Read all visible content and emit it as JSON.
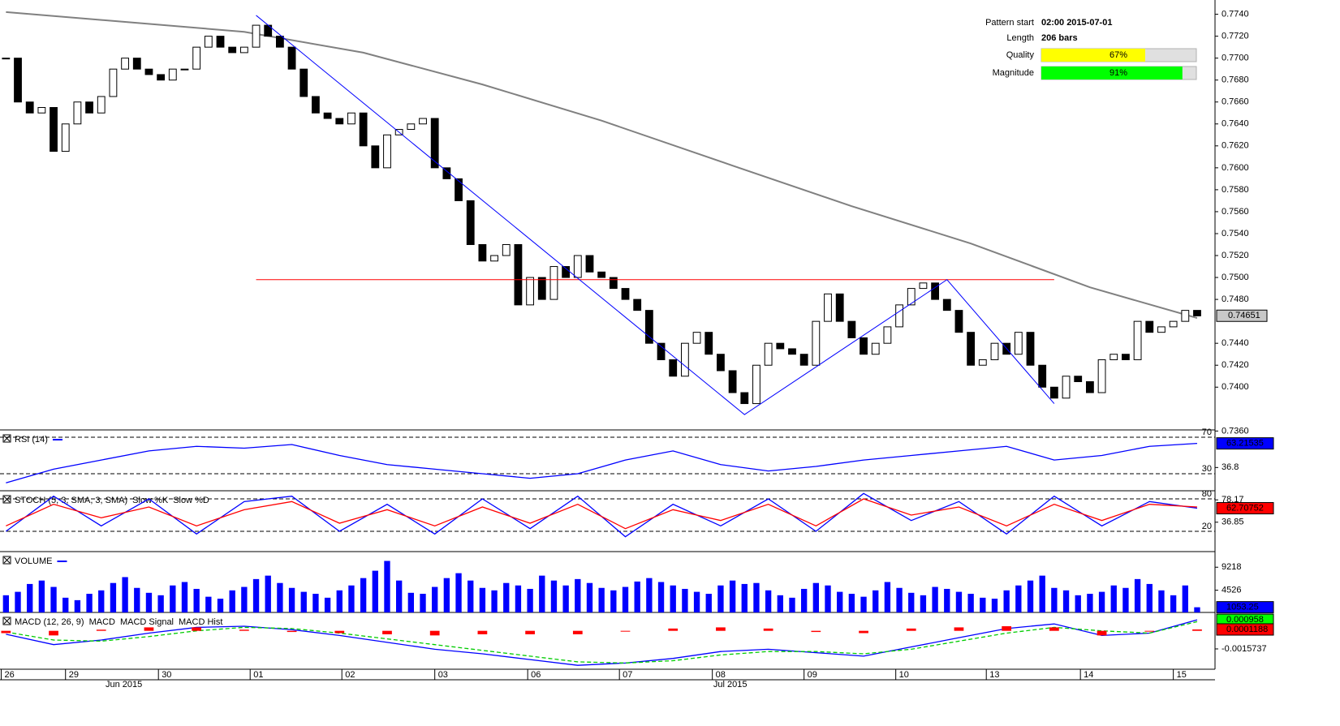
{
  "chart_data": {
    "type": "candlestick",
    "xlim": [
      -0.5,
      101.5
    ],
    "xticks": [
      {
        "value": -0.4,
        "label": "26"
      },
      {
        "value": 5,
        "label": "29"
      },
      {
        "value": 12.8,
        "label": "30"
      },
      {
        "value": 20.5,
        "label": "01"
      },
      {
        "value": 28.2,
        "label": "02"
      },
      {
        "value": 36,
        "label": "03"
      },
      {
        "value": 43.8,
        "label": "06"
      },
      {
        "value": 51.5,
        "label": "07"
      },
      {
        "value": 59.3,
        "label": "08"
      },
      {
        "value": 67,
        "label": "09"
      },
      {
        "value": 74.7,
        "label": "10"
      },
      {
        "value": 82.3,
        "label": "13"
      },
      {
        "value": 90.2,
        "label": "14"
      },
      {
        "value": 98,
        "label": "15"
      }
    ],
    "month_labels": [
      {
        "value": 9.9,
        "label": "Jun 2015"
      },
      {
        "value": 60.8,
        "label": "Jul 2015"
      }
    ],
    "close": [
      0.77,
      0.766,
      0.765,
      0.7655,
      0.7615,
      0.764,
      0.766,
      0.765,
      0.7665,
      0.769,
      0.77,
      0.769,
      0.7685,
      0.768,
      0.769,
      0.769,
      0.771,
      0.772,
      0.771,
      0.7705,
      0.771,
      0.773,
      0.772,
      0.771,
      0.769,
      0.7665,
      0.765,
      0.7645,
      0.764,
      0.765,
      0.762,
      0.76,
      0.763,
      0.7635,
      0.764,
      0.7645,
      0.76,
      0.759,
      0.757,
      0.753,
      0.7515,
      0.752,
      0.753,
      0.7475,
      0.75,
      0.748,
      0.751,
      0.75,
      0.752,
      0.7505,
      0.75,
      0.749,
      0.748,
      0.747,
      0.744,
      0.7425,
      0.741,
      0.744,
      0.745,
      0.743,
      0.7415,
      0.7395,
      0.7385,
      0.742,
      0.744,
      0.7435,
      0.743,
      0.742,
      0.746,
      0.7485,
      0.746,
      0.7445,
      0.743,
      0.744,
      0.7455,
      0.7475,
      0.749,
      0.7495,
      0.748,
      0.747,
      0.745,
      0.742,
      0.7425,
      0.744,
      0.743,
      0.745,
      0.742,
      0.74,
      0.739,
      0.741,
      0.7405,
      0.7395,
      0.7425,
      0.743,
      0.7425,
      0.746,
      0.745,
      0.7455,
      0.746,
      0.747,
      0.7465
    ],
    "ylim": [
      0.7361,
      0.7753
    ],
    "yticks": [
      {
        "value": 0.774,
        "label": "0.7740"
      },
      {
        "value": 0.772,
        "label": "0.7720"
      },
      {
        "value": 0.77,
        "label": "0.7700"
      },
      {
        "value": 0.768,
        "label": "0.7680"
      },
      {
        "value": 0.766,
        "label": "0.7660"
      },
      {
        "value": 0.764,
        "label": "0.7640"
      },
      {
        "value": 0.762,
        "label": "0.7620"
      },
      {
        "value": 0.76,
        "label": "0.7600"
      },
      {
        "value": 0.758,
        "label": "0.7580"
      },
      {
        "value": 0.756,
        "label": "0.7560"
      },
      {
        "value": 0.754,
        "label": "0.7540"
      },
      {
        "value": 0.752,
        "label": "0.7520"
      },
      {
        "value": 0.75,
        "label": "0.7500"
      },
      {
        "value": 0.748,
        "label": "0.7480"
      },
      {
        "value": 0.744,
        "label": "0.7440"
      },
      {
        "value": 0.742,
        "label": "0.7420"
      },
      {
        "value": 0.74,
        "label": "0.7400"
      },
      {
        "value": 0.736,
        "label": "0.7360"
      }
    ],
    "last_price": {
      "value": 0.74651,
      "color": "#c8c8c8"
    },
    "ma": {
      "color": "#808080",
      "x": [
        0,
        10,
        20,
        30,
        40,
        50,
        61,
        71,
        81,
        91,
        100
      ],
      "values": [
        0.7742,
        0.7733,
        0.7724,
        0.7705,
        0.7676,
        0.7643,
        0.7602,
        0.7565,
        0.7531,
        0.7491,
        0.7463
      ]
    },
    "pattern": {
      "color": "#0000ff",
      "points": [
        {
          "x": 21,
          "y": 0.7739
        },
        {
          "x": 62,
          "y": 0.7375
        },
        {
          "x": 79,
          "y": 0.7498
        },
        {
          "x": 88,
          "y": 0.7385
        }
      ]
    },
    "resistance": {
      "color": "#ff0000",
      "value": 0.7498,
      "x": [
        21,
        88
      ]
    },
    "info": [
      {
        "name": "Pattern start",
        "text": "02:00 2015-07-01"
      },
      {
        "name": "Length",
        "text": "206 bars"
      },
      {
        "name": "Quality",
        "value": 67,
        "value_label": "67%",
        "color": "#ffff00"
      },
      {
        "name": "Magnitude",
        "value": 91,
        "value_label": "91%",
        "color": "#00ff00"
      }
    ],
    "panels": [
      {
        "type": "line",
        "title": "RSI (14)",
        "ylim": [
          11.3,
          78
        ],
        "levels": [
          70,
          30
        ],
        "yticks": [
          36.8
        ],
        "x": [
          0,
          4,
          8,
          12,
          16,
          20,
          24,
          28,
          32,
          36,
          40,
          44,
          48,
          52,
          56,
          60,
          64,
          68,
          72,
          76,
          80,
          84,
          88,
          92,
          96,
          100
        ],
        "series": [
          {
            "color": "#0000ff",
            "values": [
              20,
              35,
              45,
              55,
              60,
              58,
              62,
              50,
              40,
              35,
              30,
              25,
              30,
              45,
              55,
              40,
              33,
              38,
              45,
              50,
              55,
              60,
              45,
              50,
              60,
              63.21535
            ]
          }
        ],
        "last": [
          {
            "value": 63.21535,
            "color": "#0000ff"
          }
        ]
      },
      {
        "type": "line",
        "title": "STOCH (5, 3, SMA, 3, SMA)",
        "ylim": [
          -17.5,
          95
        ],
        "levels": [
          80,
          20
        ],
        "yticks": [
          78.17,
          36.85
        ],
        "x": [
          0,
          4,
          8,
          12,
          16,
          20,
          24,
          28,
          32,
          36,
          40,
          44,
          48,
          52,
          56,
          60,
          64,
          68,
          72,
          76,
          80,
          84,
          88,
          92,
          96,
          100
        ],
        "series": [
          {
            "name": "Slow %K",
            "color": "#0000ff",
            "values": [
              20,
              85,
              30,
              80,
              15,
              75,
              85,
              20,
              70,
              15,
              80,
              25,
              85,
              10,
              70,
              30,
              80,
              20,
              90,
              40,
              75,
              15,
              85,
              30,
              75,
              62.70752
            ]
          },
          {
            "name": "Slow %D",
            "color": "#ff0000",
            "values": [
              30,
              70,
              45,
              65,
              30,
              60,
              75,
              35,
              60,
              30,
              65,
              35,
              70,
              25,
              60,
              40,
              70,
              30,
              80,
              50,
              65,
              30,
              70,
              40,
              70,
              65
            ]
          }
        ],
        "last": [
          {
            "value": 62.70752,
            "color": "#ff0000"
          }
        ]
      },
      {
        "type": "bar",
        "title": "VOLUME",
        "ylim": [
          0,
          12400
        ],
        "levels": [],
        "yticks": [
          9218,
          4526
        ],
        "color": "#0000ff",
        "values": [
          3500,
          4200,
          5800,
          6500,
          5200,
          3000,
          2500,
          3800,
          4500,
          6000,
          7200,
          5000,
          4000,
          3500,
          5500,
          6200,
          4800,
          3200,
          2800,
          4500,
          5200,
          6800,
          7500,
          6000,
          5000,
          4200,
          3800,
          3000,
          4500,
          5500,
          7000,
          8500,
          10500,
          6500,
          4000,
          3800,
          5200,
          7000,
          8000,
          6500,
          5000,
          4500,
          6000,
          5500,
          4800,
          7500,
          6500,
          5500,
          6800,
          6000,
          5000,
          4500,
          5200,
          6300,
          7000,
          6200,
          5500,
          4800,
          4200,
          3800,
          5500,
          6500,
          5800,
          6000,
          4500,
          3500,
          3000,
          4800,
          6000,
          5500,
          4200,
          3800,
          3200,
          4500,
          6200,
          5000,
          4000,
          3500,
          5200,
          4800,
          4200,
          3800,
          3000,
          2800,
          4500,
          5500,
          6500,
          7500,
          5000,
          4500,
          3500,
          3800,
          4200,
          5500,
          5000,
          6800,
          5800,
          4500,
          3500,
          5500,
          1053.25
        ],
        "last": [
          {
            "value": 1053.25,
            "color": "#0000ff"
          }
        ]
      },
      {
        "type": "macd",
        "title": "MACD (12, 26, 9)",
        "ylim": [
          -0.00334,
          0.0016
        ],
        "levels": [],
        "yticks": [
          -0.0015737
        ],
        "x": [
          0,
          4,
          8,
          12,
          16,
          20,
          24,
          28,
          32,
          36,
          40,
          44,
          48,
          52,
          56,
          60,
          64,
          68,
          72,
          76,
          80,
          84,
          88,
          92,
          96,
          100
        ],
        "series": [
          {
            "name": "MACD",
            "color": "#0000ff",
            "values": [
              -0.0003,
              -0.0012,
              -0.0008,
              -0.0002,
              0.0003,
              0.0004,
              0.0001,
              -0.0004,
              -0.001,
              -0.0016,
              -0.002,
              -0.0025,
              -0.003,
              -0.0028,
              -0.0024,
              -0.0018,
              -0.0016,
              -0.0019,
              -0.0022,
              -0.0014,
              -0.0006,
              0.0002,
              0.0006,
              -0.0004,
              -0.0002,
              0.000958
            ]
          },
          {
            "name": "MACD Signal",
            "color": "#00cc00",
            "dashed": true,
            "values": [
              -0.0001,
              -0.0008,
              -0.0009,
              -0.0005,
              0,
              0.0003,
              0.0002,
              -0.0002,
              -0.0007,
              -0.0012,
              -0.0017,
              -0.0022,
              -0.0027,
              -0.0028,
              -0.0026,
              -0.0021,
              -0.0018,
              -0.0018,
              -0.002,
              -0.0016,
              -0.0009,
              -0.0002,
              0.0003,
              0,
              -0.0002,
              0.0008
            ]
          },
          {
            "name": "MACD Hist",
            "color": "#ff0000",
            "hist": true,
            "values": [
              -0.0002,
              -0.0004,
              0.0001,
              0.0003,
              0.0003,
              0.0001,
              -0.0001,
              -0.0002,
              -0.0003,
              -0.0004,
              -0.0003,
              -0.0003,
              -0.0003,
              0,
              0.0002,
              0.0003,
              0.0002,
              -0.0001,
              -0.0002,
              0.0002,
              0.0003,
              0.0004,
              0.0003,
              -0.0004,
              0,
              0.0001188
            ]
          }
        ],
        "last": [
          {
            "value": 0.000958,
            "color": "#00ff00"
          },
          {
            "value": 0.0001188,
            "color": "#ff0000"
          }
        ]
      }
    ]
  }
}
